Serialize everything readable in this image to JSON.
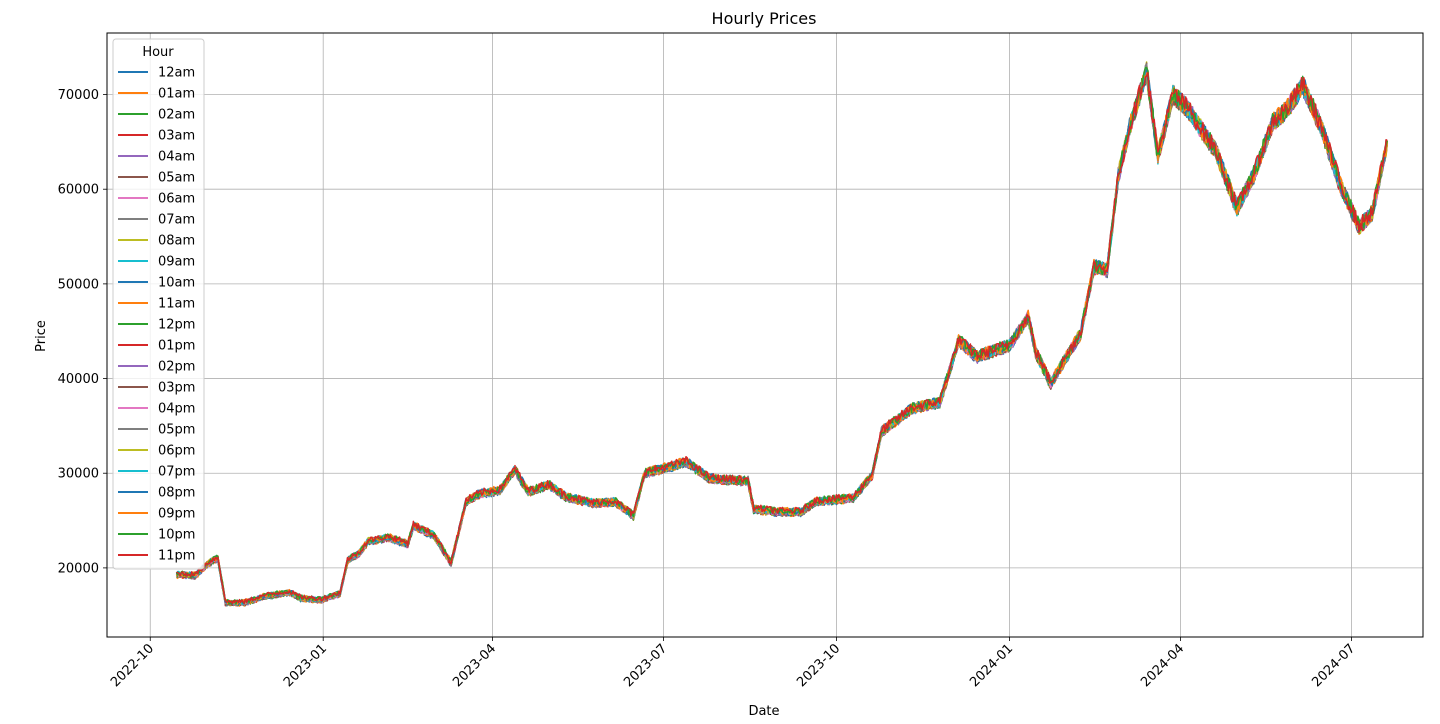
{
  "chart_data": {
    "type": "line",
    "title": "Hourly Prices",
    "xlabel": "Date",
    "ylabel": "Price",
    "legend_title": "Hour",
    "legend_position": "top-left",
    "grid": true,
    "xlim": [
      "2022-09-08",
      "2024-08-08"
    ],
    "ylim": [
      12700,
      76500
    ],
    "x_ticks": [
      "2022-10",
      "2023-01",
      "2023-04",
      "2023-07",
      "2023-10",
      "2024-01",
      "2024-04",
      "2024-07"
    ],
    "y_ticks": [
      20000,
      30000,
      40000,
      50000,
      60000,
      70000
    ],
    "series": [
      {
        "name": "12am",
        "color": "#1f77b4"
      },
      {
        "name": "01am",
        "color": "#ff7f0e"
      },
      {
        "name": "02am",
        "color": "#2ca02c"
      },
      {
        "name": "03am",
        "color": "#d62728"
      },
      {
        "name": "04am",
        "color": "#9467bd"
      },
      {
        "name": "05am",
        "color": "#8c564b"
      },
      {
        "name": "06am",
        "color": "#e377c2"
      },
      {
        "name": "07am",
        "color": "#7f7f7f"
      },
      {
        "name": "08am",
        "color": "#bcbd22"
      },
      {
        "name": "09am",
        "color": "#17becf"
      },
      {
        "name": "10am",
        "color": "#1f77b4"
      },
      {
        "name": "11am",
        "color": "#ff7f0e"
      },
      {
        "name": "12pm",
        "color": "#2ca02c"
      },
      {
        "name": "01pm",
        "color": "#d62728"
      },
      {
        "name": "02pm",
        "color": "#9467bd"
      },
      {
        "name": "03pm",
        "color": "#8c564b"
      },
      {
        "name": "04pm",
        "color": "#e377c2"
      },
      {
        "name": "05pm",
        "color": "#7f7f7f"
      },
      {
        "name": "06pm",
        "color": "#bcbd22"
      },
      {
        "name": "07pm",
        "color": "#17becf"
      },
      {
        "name": "08pm",
        "color": "#1f77b4"
      },
      {
        "name": "09pm",
        "color": "#ff7f0e"
      },
      {
        "name": "10pm",
        "color": "#2ca02c"
      },
      {
        "name": "11pm",
        "color": "#d62728"
      }
    ],
    "price_curve": [
      [
        "2022-10-15",
        19300
      ],
      [
        "2022-10-25",
        19200
      ],
      [
        "2022-11-01",
        20500
      ],
      [
        "2022-11-06",
        21000
      ],
      [
        "2022-11-09",
        17500
      ],
      [
        "2022-11-10",
        16300
      ],
      [
        "2022-11-20",
        16300
      ],
      [
        "2022-12-01",
        17000
      ],
      [
        "2022-12-14",
        17400
      ],
      [
        "2022-12-20",
        16800
      ],
      [
        "2022-12-31",
        16600
      ],
      [
        "2023-01-10",
        17300
      ],
      [
        "2023-01-14",
        20800
      ],
      [
        "2023-01-20",
        21500
      ],
      [
        "2023-01-25",
        22800
      ],
      [
        "2023-02-05",
        23200
      ],
      [
        "2023-02-15",
        22500
      ],
      [
        "2023-02-18",
        24500
      ],
      [
        "2023-03-01",
        23400
      ],
      [
        "2023-03-10",
        20500
      ],
      [
        "2023-03-18",
        27000
      ],
      [
        "2023-03-25",
        27800
      ],
      [
        "2023-04-05",
        28200
      ],
      [
        "2023-04-13",
        30400
      ],
      [
        "2023-04-20",
        28000
      ],
      [
        "2023-05-01",
        28800
      ],
      [
        "2023-05-10",
        27500
      ],
      [
        "2023-05-25",
        26800
      ],
      [
        "2023-06-05",
        27000
      ],
      [
        "2023-06-15",
        25500
      ],
      [
        "2023-06-21",
        30000
      ],
      [
        "2023-07-01",
        30500
      ],
      [
        "2023-07-13",
        31200
      ],
      [
        "2023-07-25",
        29500
      ],
      [
        "2023-08-01",
        29300
      ],
      [
        "2023-08-15",
        29200
      ],
      [
        "2023-08-18",
        26200
      ],
      [
        "2023-09-01",
        25900
      ],
      [
        "2023-09-12",
        25900
      ],
      [
        "2023-09-20",
        27000
      ],
      [
        "2023-10-01",
        27200
      ],
      [
        "2023-10-10",
        27400
      ],
      [
        "2023-10-20",
        29800
      ],
      [
        "2023-10-25",
        34400
      ],
      [
        "2023-11-10",
        36800
      ],
      [
        "2023-11-25",
        37500
      ],
      [
        "2023-12-05",
        44000
      ],
      [
        "2023-12-15",
        42300
      ],
      [
        "2024-01-01",
        43500
      ],
      [
        "2024-01-11",
        46500
      ],
      [
        "2024-01-15",
        42800
      ],
      [
        "2024-01-23",
        39500
      ],
      [
        "2024-02-01",
        42500
      ],
      [
        "2024-02-08",
        44800
      ],
      [
        "2024-02-15",
        51800
      ],
      [
        "2024-02-22",
        51500
      ],
      [
        "2024-02-28",
        61500
      ],
      [
        "2024-03-05",
        66500
      ],
      [
        "2024-03-14",
        72500
      ],
      [
        "2024-03-20",
        63500
      ],
      [
        "2024-03-28",
        70000
      ],
      [
        "2024-04-05",
        68500
      ],
      [
        "2024-04-13",
        66000
      ],
      [
        "2024-04-20",
        64000
      ],
      [
        "2024-05-01",
        58000
      ],
      [
        "2024-05-10",
        61500
      ],
      [
        "2024-05-20",
        67000
      ],
      [
        "2024-05-28",
        68500
      ],
      [
        "2024-06-05",
        71000
      ],
      [
        "2024-06-15",
        66500
      ],
      [
        "2024-06-25",
        60500
      ],
      [
        "2024-07-05",
        56000
      ],
      [
        "2024-07-12",
        57500
      ],
      [
        "2024-07-20",
        65000
      ]
    ]
  }
}
